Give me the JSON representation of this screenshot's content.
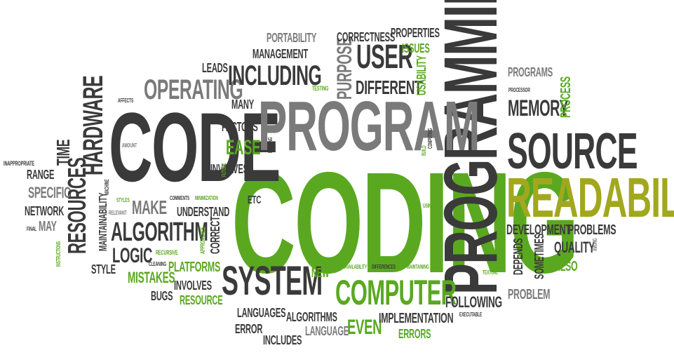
{
  "colors": {
    "dark": "#3a3a3a",
    "gray": "#7a7a7a",
    "green": "#5aa820",
    "olive": "#a2a81e"
  },
  "words": [
    {
      "text": "CODING",
      "color": "green"
    },
    {
      "text": "PROGRAMMING",
      "color": "dark"
    },
    {
      "text": "CODE",
      "color": "dark"
    },
    {
      "text": "PROGRAM",
      "color": "gray"
    },
    {
      "text": "READABILITY",
      "color": "olive"
    },
    {
      "text": "SOURCE",
      "color": "dark"
    },
    {
      "text": "SYSTEM",
      "color": "dark"
    },
    {
      "text": "COMPUTER",
      "color": "green"
    },
    {
      "text": "ALGORITHM",
      "color": "dark"
    },
    {
      "text": "OPERATING",
      "color": "gray"
    },
    {
      "text": "INCLUDING",
      "color": "dark"
    },
    {
      "text": "USER",
      "color": "dark"
    },
    {
      "text": "DIFFERENT",
      "color": "dark"
    },
    {
      "text": "PURPOSE",
      "color": "gray"
    },
    {
      "text": "CORRECTNESS",
      "color": "dark"
    },
    {
      "text": "PROPERTIES",
      "color": "dark"
    },
    {
      "text": "ISSUES",
      "color": "green"
    },
    {
      "text": "USABILITY",
      "color": "green"
    },
    {
      "text": "PORTABILITY",
      "color": "gray"
    },
    {
      "text": "MANAGEMENT",
      "color": "dark"
    },
    {
      "text": "LEADS",
      "color": "dark"
    },
    {
      "text": "TESTING",
      "color": "green"
    },
    {
      "text": "MANY",
      "color": "dark"
    },
    {
      "text": "FACTORS",
      "color": "dark"
    },
    {
      "text": "EASE",
      "color": "green"
    },
    {
      "text": "INVOLVES",
      "color": "dark"
    },
    {
      "text": "ETC",
      "color": "dark"
    },
    {
      "text": "MAKE",
      "color": "gray"
    },
    {
      "text": "UNDERSTAND",
      "color": "dark"
    },
    {
      "text": "COMMENTS",
      "color": "dark"
    },
    {
      "text": "MINIMIZATION",
      "color": "green"
    },
    {
      "text": "LOGIC",
      "color": "dark"
    },
    {
      "text": "RECURSIVE",
      "color": "green"
    },
    {
      "text": "MISTAKES",
      "color": "green"
    },
    {
      "text": "PLATFORMS",
      "color": "green"
    },
    {
      "text": "CLEANING",
      "color": "dark"
    },
    {
      "text": "BUGS",
      "color": "dark"
    },
    {
      "text": "RESOURCE",
      "color": "green"
    },
    {
      "text": "STYLE",
      "color": "dark"
    },
    {
      "text": "HARDWARE",
      "color": "dark"
    },
    {
      "text": "RESOURCES",
      "color": "dark"
    },
    {
      "text": "MAINTAINABILITY",
      "color": "dark"
    },
    {
      "text": "TIME",
      "color": "dark"
    },
    {
      "text": "RANGE",
      "color": "dark"
    },
    {
      "text": "SPECIFIC",
      "color": "gray"
    },
    {
      "text": "NETWORK",
      "color": "dark"
    },
    {
      "text": "MAY",
      "color": "gray"
    },
    {
      "text": "FINAL",
      "color": "dark"
    },
    {
      "text": "INAPPROPRIATE",
      "color": "dark"
    },
    {
      "text": "AFFECTS",
      "color": "dark"
    },
    {
      "text": "AMOUNT",
      "color": "gray"
    },
    {
      "text": "MACHINE",
      "color": "dark"
    },
    {
      "text": "RELEVANT",
      "color": "gray"
    },
    {
      "text": "STYLES",
      "color": "green"
    },
    {
      "text": "INSTRUCTIONS",
      "color": "green"
    },
    {
      "text": "APPROACHES",
      "color": "green"
    },
    {
      "text": "CORRECT",
      "color": "dark"
    },
    {
      "text": "FUTURE",
      "color": "green"
    },
    {
      "text": "EXISTING",
      "color": "dark"
    },
    {
      "text": "COMPUTING",
      "color": "dark"
    },
    {
      "text": "BUILD",
      "color": "green"
    },
    {
      "text": "USING",
      "color": "green"
    },
    {
      "text": "NEW",
      "color": "green"
    },
    {
      "text": "UNAVAILABILITY",
      "color": "green"
    },
    {
      "text": "DIFFERENCES",
      "color": "dark"
    },
    {
      "text": "MAINTAINING",
      "color": "green"
    },
    {
      "text": "LANGUAGES",
      "color": "dark"
    },
    {
      "text": "ALGORITHMS",
      "color": "dark"
    },
    {
      "text": "ERROR",
      "color": "dark"
    },
    {
      "text": "INCLUDES",
      "color": "dark"
    },
    {
      "text": "LANGUAGE",
      "color": "gray"
    },
    {
      "text": "EVEN",
      "color": "green"
    },
    {
      "text": "IMPLEMENTATION",
      "color": "dark"
    },
    {
      "text": "ERRORS",
      "color": "green"
    },
    {
      "text": "PROGRAMS",
      "color": "gray"
    },
    {
      "text": "PROCESSOR",
      "color": "dark"
    },
    {
      "text": "MEMORY",
      "color": "dark"
    },
    {
      "text": "PROCESS",
      "color": "green"
    },
    {
      "text": "DEVELOPMENT",
      "color": "dark"
    },
    {
      "text": "PROBLEMS",
      "color": "dark"
    },
    {
      "text": "DEPENDS",
      "color": "dark"
    },
    {
      "text": "SOMETIMES",
      "color": "dark"
    },
    {
      "text": "QUALITY",
      "color": "dark"
    },
    {
      "text": "AMONG",
      "color": "gray"
    },
    {
      "text": "ALSO",
      "color": "green"
    },
    {
      "text": "TEXTUAL",
      "color": "green"
    },
    {
      "text": "FOLLOWING",
      "color": "dark"
    },
    {
      "text": "EXECUTABLE",
      "color": "dark"
    },
    {
      "text": "PROBLEM",
      "color": "gray"
    }
  ]
}
